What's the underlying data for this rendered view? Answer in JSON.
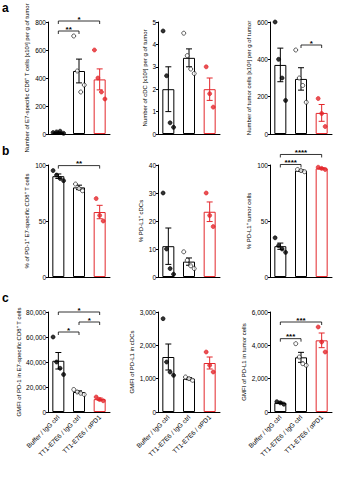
{
  "panel_labels": [
    "a",
    "b",
    "c"
  ],
  "chart_data": [
    {
      "type": "bar",
      "ylabel": "Number of E7-specific CD8⁺ T cells [x10³] per g of tumor",
      "categories": [
        "Buffer / IgG ctrl",
        "TT1-E7E6 / IgG ctrl",
        "TT1-E7E6 / αPD1"
      ],
      "values": [
        12,
        450,
        390
      ],
      "errors": [
        3,
        85,
        75
      ],
      "points": [
        [
          10,
          15,
          20,
          5
        ],
        [
          700,
          450,
          300,
          350
        ],
        [
          600,
          400,
          300,
          250
        ]
      ],
      "colors": [
        "#000000",
        "#000000",
        "#e3262b"
      ],
      "markers": [
        "circle",
        "emptyCircle",
        "circle"
      ],
      "ylim": [
        0,
        800
      ],
      "yticks": [
        0,
        200,
        400,
        600,
        800
      ],
      "grid": false,
      "tick_labels": "y",
      "significance": [
        {
          "from": 0,
          "to": 1,
          "label": "**"
        },
        {
          "from": 0,
          "to": 2,
          "label": "*"
        }
      ]
    },
    {
      "type": "bar",
      "ylabel": "Number of cDC [x10³] per g of tumor",
      "categories": [
        "Buffer / IgG ctrl",
        "TT1-E7E6 / IgG ctrl",
        "TT1-E7E6 / αPD1"
      ],
      "values": [
        2.0,
        3.4,
        2.0
      ],
      "errors": [
        1.0,
        0.4,
        0.5
      ],
      "points": [
        [
          4.6,
          2.6,
          0.5,
          0.3
        ],
        [
          4.5,
          3.5,
          2.9,
          2.7
        ],
        [
          3.0,
          1.8,
          1.2
        ]
      ],
      "colors": [
        "#000000",
        "#000000",
        "#e3262b"
      ],
      "markers": [
        "circle",
        "emptyCircle",
        "circle"
      ],
      "ylim": [
        0,
        5
      ],
      "yticks": [
        0,
        1,
        2,
        3,
        4,
        5
      ],
      "grid": false,
      "tick_labels": "y",
      "significance": []
    },
    {
      "type": "bar",
      "ylabel": "Number of tumor cells [x10³] per g of tumor",
      "categories": [
        "Buffer / IgG ctrl",
        "TT1-E7E6 / IgG ctrl",
        "TT1-E7E6 / αPD1"
      ],
      "values": [
        370,
        295,
        113
      ],
      "errors": [
        90,
        60,
        45
      ],
      "points": [
        [
          600,
          400,
          300,
          180
        ],
        [
          450,
          300,
          260,
          170
        ],
        [
          190,
          110,
          40
        ]
      ],
      "colors": [
        "#000000",
        "#000000",
        "#e3262b"
      ],
      "markers": [
        "circle",
        "emptyCircle",
        "circle"
      ],
      "ylim": [
        0,
        600
      ],
      "yticks": [
        0,
        200,
        400,
        600
      ],
      "grid": false,
      "tick_labels": "y",
      "significance": [
        {
          "from": 1,
          "to": 2,
          "label": "*"
        }
      ]
    },
    {
      "type": "bar",
      "ylabel": "% of PD-1⁺ E7-specific CD8⁺ T cells",
      "categories": [
        "Buffer / IgG ctrl",
        "TT1-E7E6 / IgG ctrl",
        "TT1-E7E6 / αPD1"
      ],
      "values": [
        90,
        80,
        58
      ],
      "errors": [
        2,
        2,
        6
      ],
      "points": [
        [
          95,
          91,
          88,
          86
        ],
        [
          83,
          79,
          77
        ],
        [
          70,
          55,
          50
        ]
      ],
      "colors": [
        "#000000",
        "#000000",
        "#e3262b"
      ],
      "markers": [
        "circle",
        "emptyCircle",
        "circle"
      ],
      "ylim": [
        0,
        100
      ],
      "yticks": [
        0,
        50,
        100
      ],
      "grid": false,
      "tick_labels": "y",
      "significance": [
        {
          "from": 0,
          "to": 2,
          "label": "**"
        }
      ]
    },
    {
      "type": "bar",
      "ylabel": "% PD-L1⁺ cDCs",
      "categories": [
        "Buffer / IgG ctrl",
        "TT1-E7E6 / IgG ctrl",
        "TT1-E7E6 / αPD1"
      ],
      "values": [
        11,
        5.5,
        23.3
      ],
      "errors": [
        6.5,
        1.3,
        3.5
      ],
      "points": [
        [
          30,
          10,
          3,
          1
        ],
        [
          9,
          6,
          4,
          3
        ],
        [
          30,
          22,
          18
        ]
      ],
      "colors": [
        "#000000",
        "#000000",
        "#e3262b"
      ],
      "markers": [
        "circle",
        "emptyCircle",
        "circle"
      ],
      "ylim": [
        0,
        40
      ],
      "yticks": [
        0,
        10,
        20,
        30,
        40
      ],
      "grid": false,
      "tick_labels": "y",
      "significance": []
    },
    {
      "type": "bar",
      "ylabel": "% PD-L1⁺ tumor cells",
      "categories": [
        "Buffer / IgG ctrl",
        "TT1-E7E6 / IgG ctrl",
        "TT1-E7E6 / αPD1"
      ],
      "values": [
        27.5,
        95,
        97
      ],
      "errors": [
        2.8,
        0.6,
        0.6
      ],
      "points": [
        [
          35,
          28,
          25,
          22
        ],
        [
          96,
          95,
          94
        ],
        [
          98,
          97,
          96
        ]
      ],
      "colors": [
        "#000000",
        "#000000",
        "#e3262b"
      ],
      "markers": [
        "circle",
        "emptyCircle",
        "circle"
      ],
      "ylim": [
        0,
        100
      ],
      "yticks": [
        0,
        50,
        100
      ],
      "grid": false,
      "tick_labels": "y",
      "significance": [
        {
          "from": 0,
          "to": 1,
          "label": "****"
        },
        {
          "from": 0,
          "to": 2,
          "label": "****"
        }
      ]
    },
    {
      "type": "bar",
      "ylabel": "GMFI of PD-1 in E7-specific CD8⁺ T cells",
      "categories": [
        "Buffer / IgG ctrl",
        "TT1-E7E6 / IgG ctrl",
        "TT1-E7E6 / αPD1"
      ],
      "values": [
        41000,
        16000,
        10300
      ],
      "errors": [
        6600,
        900,
        900
      ],
      "points": [
        [
          60000,
          40000,
          35000,
          30000
        ],
        [
          18000,
          16000,
          15000,
          14000
        ],
        [
          12000,
          10000,
          9000
        ]
      ],
      "colors": [
        "#000000",
        "#000000",
        "#e3262b"
      ],
      "markers": [
        "circle",
        "emptyCircle",
        "circle"
      ],
      "ylim": [
        0,
        80000
      ],
      "yticks": [
        0,
        20000,
        40000,
        60000,
        80000
      ],
      "grid": false,
      "significance": [
        {
          "from": 0,
          "to": 1,
          "label": "*"
        },
        {
          "from": 1,
          "to": 2,
          "label": "*"
        },
        {
          "from": 0,
          "to": 2,
          "label": "*"
        }
      ]
    },
    {
      "type": "bar",
      "ylabel": "GMFI of PD-L1 in cDCs",
      "categories": [
        "Buffer / IgG ctrl",
        "TT1-E7E6 / IgG ctrl",
        "TT1-E7E6 / αPD1"
      ],
      "values": [
        1650,
        1000,
        1470
      ],
      "errors": [
        390,
        30,
        180
      ],
      "points": [
        [
          2800,
          1500,
          1200,
          1100
        ],
        [
          1050,
          1000,
          950
        ],
        [
          1800,
          1400,
          1200
        ]
      ],
      "colors": [
        "#000000",
        "#000000",
        "#e3262b"
      ],
      "markers": [
        "circle",
        "emptyCircle",
        "circle"
      ],
      "ylim": [
        0,
        3000
      ],
      "yticks": [
        0,
        1000,
        2000,
        3000
      ],
      "grid": false,
      "significance": []
    },
    {
      "type": "bar",
      "ylabel": "GMFI of PD-L1 in tumor cells",
      "categories": [
        "Buffer / IgG ctrl",
        "TT1-E7E6 / IgG ctrl",
        "TT1-E7E6 / αPD1"
      ],
      "values": [
        550,
        3280,
        4300
      ],
      "errors": [
        45,
        300,
        440
      ],
      "points": [
        [
          620,
          550,
          470
        ],
        [
          4100,
          3300,
          2900,
          2800
        ],
        [
          5100,
          4200,
          3600
        ]
      ],
      "colors": [
        "#000000",
        "#000000",
        "#e3262b"
      ],
      "markers": [
        "circle",
        "emptyCircle",
        "circle"
      ],
      "ylim": [
        0,
        6000
      ],
      "yticks": [
        0,
        2000,
        4000,
        6000
      ],
      "grid": false,
      "significance": [
        {
          "from": 0,
          "to": 1,
          "label": "***"
        },
        {
          "from": 0,
          "to": 2,
          "label": "***"
        }
      ]
    }
  ]
}
